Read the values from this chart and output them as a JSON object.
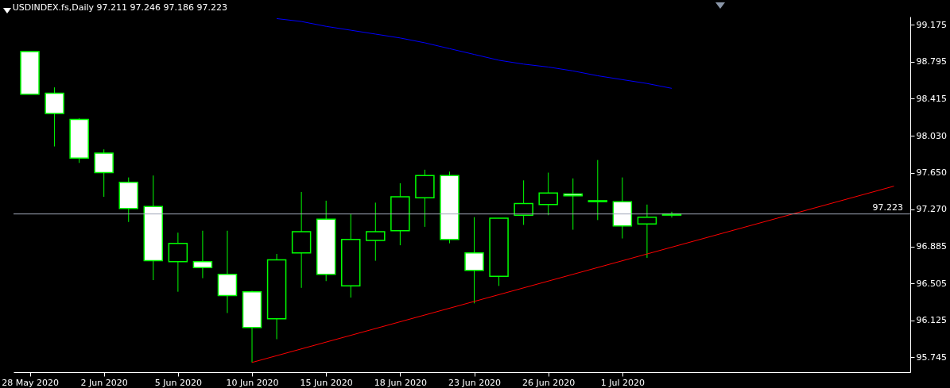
{
  "chart_data": {
    "type": "candlestick",
    "title": "USDINDEX.fs,Daily  97.211 97.246 97.186 97.223",
    "color": "#00ff00",
    "categories": [
      "28 May 2020",
      null,
      null,
      "2 Jun 2020",
      null,
      null,
      "5 Jun 2020",
      null,
      null,
      "10 Jun 2020",
      null,
      null,
      "15 Jun 2020",
      null,
      null,
      "18 Jun 2020",
      null,
      null,
      "23 Jun 2020",
      null,
      null,
      "26 Jun 2020",
      null,
      null,
      "1 Jul 2020",
      null,
      null,
      null,
      null,
      null,
      null,
      null,
      null,
      null,
      null,
      null
    ],
    "ohlc": [
      [
        98.9,
        98.9,
        98.46,
        98.46
      ],
      [
        98.47,
        98.53,
        97.92,
        98.26
      ],
      [
        98.2,
        98.21,
        97.75,
        97.8
      ],
      [
        97.85,
        97.89,
        97.4,
        97.65
      ],
      [
        97.55,
        97.6,
        97.14,
        97.28
      ],
      [
        97.3,
        97.62,
        96.54,
        96.74
      ],
      [
        96.73,
        97.03,
        96.42,
        96.92
      ],
      [
        96.73,
        97.05,
        96.56,
        96.67
      ],
      [
        96.6,
        97.05,
        96.2,
        96.38
      ],
      [
        96.42,
        96.43,
        95.69,
        96.05
      ],
      [
        96.14,
        96.81,
        95.93,
        96.75
      ],
      [
        96.82,
        97.45,
        96.46,
        97.04
      ],
      [
        97.17,
        97.36,
        96.53,
        96.6
      ],
      [
        96.48,
        97.22,
        96.36,
        96.96
      ],
      [
        96.95,
        97.34,
        96.74,
        97.04
      ],
      [
        97.05,
        97.54,
        96.9,
        97.4
      ],
      [
        97.39,
        97.68,
        97.09,
        97.62
      ],
      [
        97.62,
        97.66,
        96.92,
        96.96
      ],
      [
        96.82,
        97.19,
        96.3,
        96.64
      ],
      [
        96.58,
        97.18,
        96.48,
        97.18
      ],
      [
        97.21,
        97.57,
        97.11,
        97.33
      ],
      [
        97.32,
        97.65,
        97.21,
        97.44
      ],
      [
        97.43,
        97.59,
        97.06,
        97.41
      ],
      [
        97.36,
        97.78,
        97.16,
        97.35
      ],
      [
        97.35,
        97.6,
        96.97,
        97.1
      ],
      [
        97.12,
        97.32,
        96.77,
        97.19
      ],
      [
        97.211,
        97.246,
        97.186,
        97.223
      ],
      null,
      null,
      null,
      null,
      null,
      null,
      null,
      null,
      null
    ],
    "series": [
      {
        "type": "line",
        "color": "#0000ff",
        "values": [
          null,
          null,
          null,
          null,
          null,
          null,
          null,
          null,
          null,
          null,
          99.24,
          99.21,
          99.16,
          99.12,
          99.08,
          99.04,
          98.99,
          98.93,
          98.87,
          98.81,
          98.77,
          98.74,
          98.7,
          98.65,
          98.61,
          98.57,
          98.52,
          null,
          null,
          null,
          null,
          null,
          null,
          null,
          null,
          null
        ]
      },
      {
        "type": "line",
        "color": "#ff0000",
        "values": [
          null,
          null,
          null,
          null,
          null,
          null,
          null,
          null,
          null,
          95.69,
          null,
          null,
          null,
          null,
          null,
          null,
          null,
          null,
          null,
          null,
          null,
          null,
          null,
          null,
          null,
          null,
          null,
          null,
          null,
          null,
          null,
          null,
          null,
          null,
          null,
          97.51
        ]
      }
    ],
    "ylim": [
      95.59,
      99.26
    ],
    "yticks": [
      95.745,
      96.125,
      96.505,
      96.885,
      {
        "value": 97.27,
        "label": "97.270"
      },
      {
        "value": 97.65,
        "label": "97.650"
      },
      {
        "value": 98.03,
        "label": "98.030"
      },
      98.415,
      98.795,
      99.175
    ],
    "ref_lines": [
      {
        "axis": "y",
        "value": 97.223,
        "label": "97.223",
        "color": "#a0a8b8"
      }
    ]
  }
}
